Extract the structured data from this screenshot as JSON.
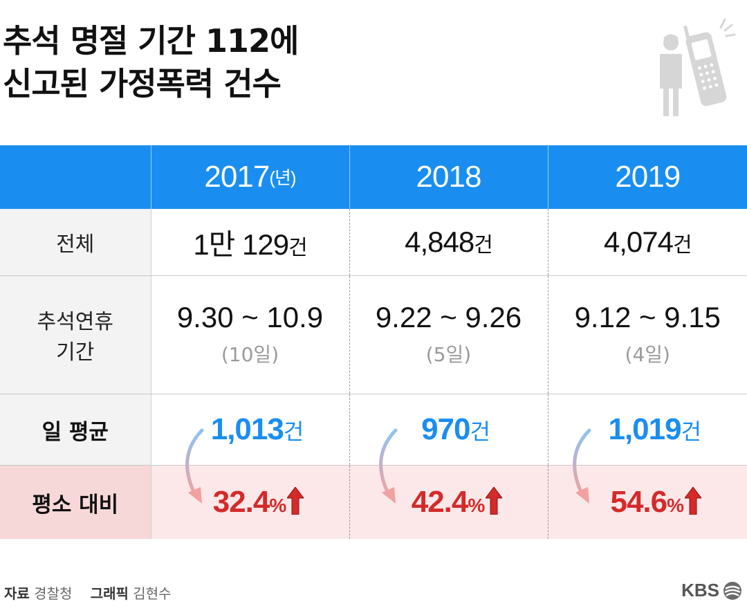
{
  "title": {
    "line1": "추석 명절 기간 112에",
    "line2": "신고된 가정폭력 건수"
  },
  "table": {
    "headers": [
      {
        "year": "2017",
        "suffix": "(년)"
      },
      {
        "year": "2018",
        "suffix": ""
      },
      {
        "year": "2019",
        "suffix": ""
      }
    ],
    "rows": {
      "total": {
        "label": "전체",
        "values": [
          {
            "num": "1만 129",
            "unit": "건"
          },
          {
            "num": "4,848",
            "unit": "건"
          },
          {
            "num": "4,074",
            "unit": "건"
          }
        ]
      },
      "period": {
        "label_line1": "추석연휴",
        "label_line2": "기간",
        "values": [
          {
            "range": "9.30 ~ 10.9",
            "days": "(10일)"
          },
          {
            "range": "9.22 ~ 9.26",
            "days": "(5일)"
          },
          {
            "range": "9.12 ~ 9.15",
            "days": "(4일)"
          }
        ]
      },
      "daily_avg": {
        "label": "일 평균",
        "values": [
          {
            "num": "1,013",
            "unit": "건"
          },
          {
            "num": "970",
            "unit": "건"
          },
          {
            "num": "1,019",
            "unit": "건"
          }
        ]
      },
      "vs_normal": {
        "label": "평소 대비",
        "values": [
          {
            "num": "32.4",
            "unit": "%"
          },
          {
            "num": "42.4",
            "unit": "%"
          },
          {
            "num": "54.6",
            "unit": "%"
          }
        ]
      }
    }
  },
  "footer": {
    "source_key": "자료",
    "source_value": "경찰청",
    "graphic_key": "그래픽",
    "graphic_value": "김현수",
    "logo": "KBS"
  },
  "colors": {
    "header_blue": "#1a8ef0",
    "avg_blue": "#1a8ef0",
    "ratio_red": "#d42a2a",
    "ratio_bg": "#fce8e8",
    "ratio_label_bg": "#f7d8d8",
    "label_bg": "#f3f3f3"
  },
  "icons": [
    "person-icon",
    "mobile-phone-icon",
    "curved-arrow-icon",
    "up-arrow-icon",
    "kbs-logo-icon"
  ]
}
